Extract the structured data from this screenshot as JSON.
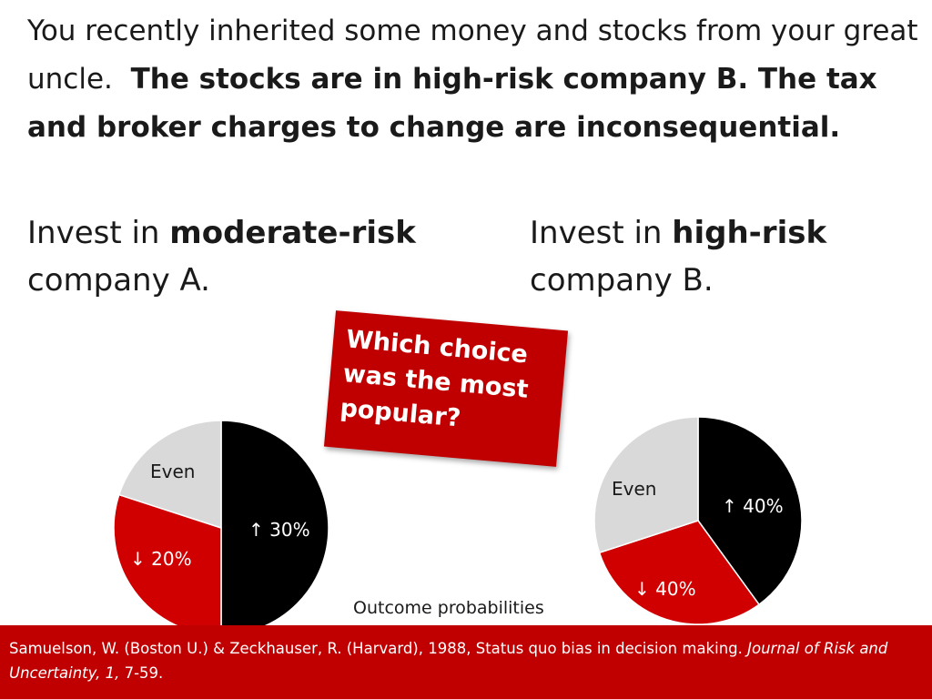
{
  "intro": {
    "plain": "You recently inherited some money and stocks from your great uncle.",
    "bold": "The stocks are in high-risk company B.  The tax and broker charges to change are inconsequential."
  },
  "choices": {
    "a": {
      "prefix": "Invest in ",
      "bold": "moderate-risk",
      "suffix": "company A."
    },
    "b": {
      "prefix": "Invest in ",
      "bold": "high-risk",
      "suffix": "company B."
    }
  },
  "question": "Which choice\nwas the most\npopular?",
  "outcome_label": "Outcome probabilities",
  "footer": {
    "plain_1": "Samuelson, W. (Boston U.) & Zeckhauser, R. (Harvard), 1988, Status quo bias in decision making.",
    "italic": "Journal of Risk and Uncertainty, 1,",
    "plain_2": "7-59."
  },
  "colors": {
    "up": "#000000",
    "down": "#d00000",
    "even": "#d9d9d9",
    "accent": "#c00000"
  },
  "chart_data": [
    {
      "type": "pie",
      "title": "",
      "labels": [
        "↑ 30%",
        "↓ 20%",
        "Even"
      ],
      "values": [
        50,
        30,
        20
      ],
      "colors": [
        "#000000",
        "#d00000",
        "#d9d9d9"
      ]
    },
    {
      "type": "pie",
      "title": "",
      "labels": [
        "↑ 40%",
        "↓ 40%",
        "Even"
      ],
      "values": [
        40,
        30,
        30
      ],
      "colors": [
        "#000000",
        "#d00000",
        "#d9d9d9"
      ]
    }
  ]
}
